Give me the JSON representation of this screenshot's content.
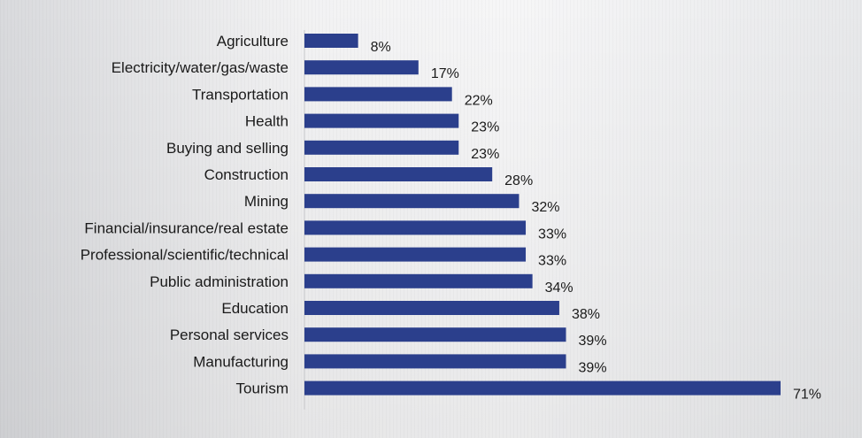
{
  "chart_data": {
    "type": "bar",
    "orientation": "horizontal",
    "categories": [
      "Agriculture",
      "Electricity/water/gas/waste",
      "Transportation",
      "Health",
      "Buying and selling",
      "Construction",
      "Mining",
      "Financial/insurance/real estate",
      "Professional/scientific/technical",
      "Public administration",
      "Education",
      "Personal services",
      "Manufacturing",
      "Tourism"
    ],
    "values": [
      8,
      17,
      22,
      23,
      23,
      28,
      32,
      33,
      33,
      34,
      38,
      39,
      39,
      71
    ],
    "value_labels": [
      "8%",
      "17%",
      "22%",
      "23%",
      "23%",
      "28%",
      "32%",
      "33%",
      "33%",
      "34%",
      "38%",
      "39%",
      "39%",
      "71%"
    ],
    "xlim": [
      0,
      71
    ],
    "grid": false,
    "bar_color": "#2b3f8c"
  }
}
